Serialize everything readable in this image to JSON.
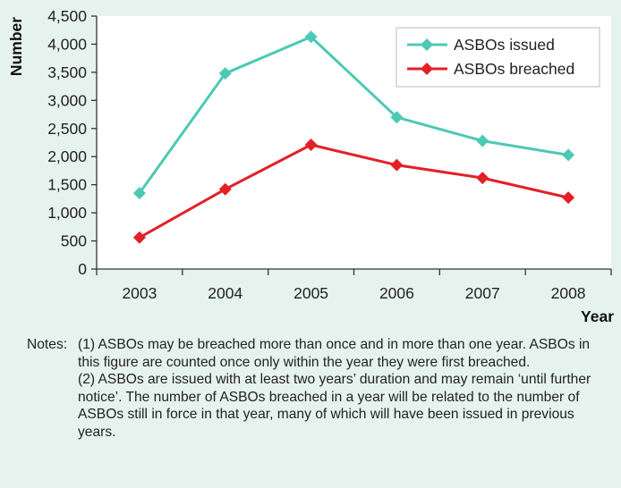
{
  "chart_data": {
    "type": "line",
    "title": "",
    "xlabel": "Year",
    "ylabel": "Number",
    "categories": [
      "2003",
      "2004",
      "2005",
      "2006",
      "2007",
      "2008"
    ],
    "ylim": [
      0,
      4500
    ],
    "yticks": [
      0,
      500,
      1000,
      1500,
      2000,
      2500,
      3000,
      3500,
      4000,
      4500
    ],
    "ytick_labels": [
      "0",
      "500",
      "1,000",
      "1,500",
      "2,000",
      "2,500",
      "3,000",
      "3,500",
      "4,000",
      "4,500"
    ],
    "grid": false,
    "legend_position": "top-right",
    "series": [
      {
        "name": "ASBOs issued",
        "color": "#4cc9b4",
        "marker": "diamond",
        "values": [
          1350,
          3480,
          4130,
          2700,
          2280,
          2030
        ]
      },
      {
        "name": "ASBOs breached",
        "color": "#e32028",
        "marker": "diamond",
        "values": [
          560,
          1420,
          2210,
          1850,
          1620,
          1270
        ]
      }
    ]
  },
  "notes": {
    "label": "Notes:",
    "items": [
      "(1) ASBOs may be breached more than once and in more than one year. ASBOs in this figure are counted once only within the year they were first breached.",
      "(2) ASBOs are issued with at least two years’ duration and may remain ‘until further notice’. The number of ASBOs breached in a year will be related to the number of ASBOs still in force in that year, many of which will have been issued in previous years."
    ]
  }
}
